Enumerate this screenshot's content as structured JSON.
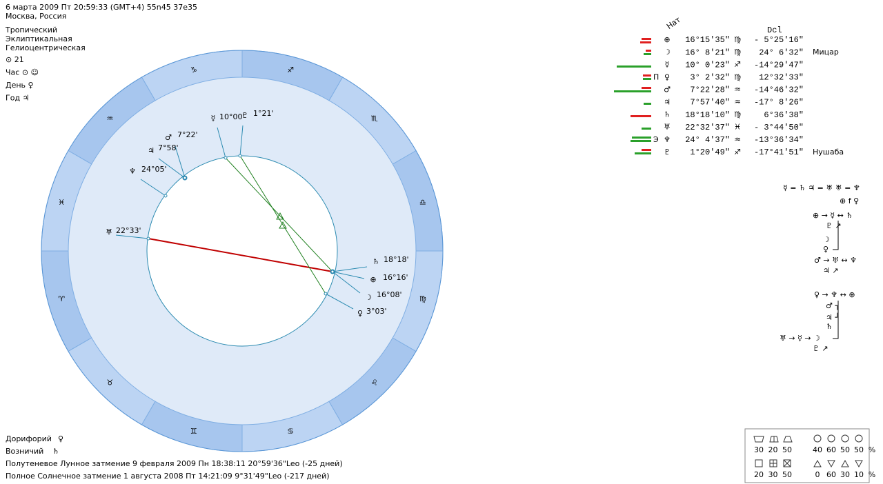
{
  "header": {
    "date_line": "6 марта 2009  Пт  20:59:33 (GMT+4) 55n45  37e35",
    "location": "Москва, Россия"
  },
  "settings": [
    "Тропический",
    "Эклиптикальная",
    "Гелиоцентрическая"
  ],
  "info": [
    "⊙  21",
    "Час ⊙ ☺",
    "День ♀",
    "Год ♃"
  ],
  "table": {
    "headers": [
      "Нат",
      "Dcl"
    ],
    "rows": [
      {
        "glyph": "⊕",
        "position": "16°15'35\"",
        "sign": "♍",
        "declination": "- 5°25'16\""
      },
      {
        "glyph": "☽",
        "position": "16° 8'21\"",
        "sign": "♍",
        "declination": "24° 6'32\"",
        "star": "Мицар"
      },
      {
        "glyph": "☿",
        "position": "10° 0'23\"",
        "sign": "♐",
        "declination": "-14°29'47\""
      },
      {
        "prefix": "П",
        "glyph": "♀",
        "position": "3° 2'32\"",
        "sign": "♍",
        "declination": "12°32'33\""
      },
      {
        "glyph": "♂",
        "position": "7°22'28\"",
        "sign": "♒",
        "declination": "-14°46'32\""
      },
      {
        "glyph": "♃",
        "position": "7°57'40\"",
        "sign": "♒",
        "declination": "-17° 8'26\""
      },
      {
        "glyph": "♄",
        "position": "18°18'10\"",
        "sign": "♍",
        "declination": "6°36'38\""
      },
      {
        "glyph": "♅",
        "position": "22°32'37\"",
        "sign": "♓",
        "declination": "- 3°44'50\""
      },
      {
        "prefix": "Э",
        "glyph": "♆",
        "position": "24° 4'37\"",
        "sign": "♒",
        "declination": "-13°36'34\""
      },
      {
        "glyph": "♇",
        "position": "1°20'49\"",
        "sign": "♐",
        "declination": "-17°41'51\"",
        "star": "Нушаба"
      }
    ]
  },
  "wheel": {
    "signs": [
      "♈",
      "♉",
      "♊",
      "♋",
      "♌",
      "♍",
      "♎",
      "♏",
      "♐",
      "♑",
      "♒",
      "♓"
    ],
    "planets": [
      {
        "glyph": "☿",
        "label": "10°00'"
      },
      {
        "glyph": "♇",
        "label": "1°21'"
      },
      {
        "glyph": "♂",
        "label": "7°22'"
      },
      {
        "glyph": "♃",
        "label": "7°58'"
      },
      {
        "glyph": "♆",
        "label": "24°05'"
      },
      {
        "glyph": "♅",
        "label": "22°33'"
      },
      {
        "glyph": "♄",
        "label": "18°18'"
      },
      {
        "glyph": "⊕",
        "label": "16°16'",
        "color": "#e01010"
      },
      {
        "glyph": "☽",
        "label": "16°08'",
        "color": "#e01010"
      },
      {
        "glyph": "♀",
        "label": "3°03'"
      }
    ]
  },
  "aspects": [
    "☿ = ♄  ♃ = ♅  ♅ = ♆",
    "⊕ f ♀",
    "⊕ → ☿ ↔ ♄",
    "♇ ↗",
    "☽",
    "♀",
    "♂ → ♅ ↔ ♆",
    "♃ ↗",
    "♀ → ♆ ↔ ⊕",
    "♂ ┐",
    "♃ ┘",
    "♄",
    "♅ → ☿ → ☽",
    "♇ ↗"
  ],
  "footer": {
    "stars": [
      {
        "label": "Дорифорий",
        "glyph": "♀"
      },
      {
        "label": "Возничий",
        "glyph": "♄"
      }
    ],
    "eclipses": [
      "Полутеневое Лунное затмение 9 февраля 2009 Пн 18:38:11 20°59'36\"Leo (-25 дней)",
      "Полное Солнечное затмение 1 августа 2008 Пт 14:21:09  9°31'49\"Leo (-217 дней)"
    ]
  },
  "stats": {
    "row1": {
      "a": [
        30,
        20,
        50
      ],
      "b": [
        40,
        60,
        50,
        50
      ]
    },
    "row2": {
      "a": [
        20,
        30,
        50
      ],
      "b": [
        0,
        60,
        30,
        10
      ]
    },
    "unit": "%"
  }
}
